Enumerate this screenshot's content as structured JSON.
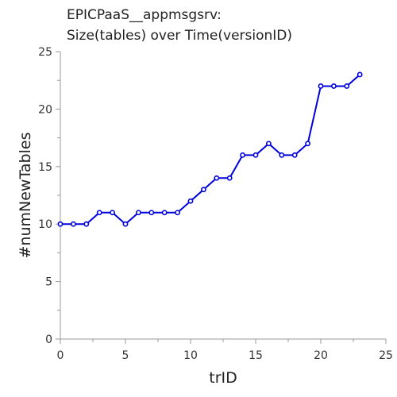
{
  "chart_data": {
    "type": "line",
    "title_lines": [
      "EPICPaaS__appmsgsrv:",
      "Size(tables) over Time(versionID)"
    ],
    "xlabel": "trID",
    "ylabel": "#numNewTables",
    "xlim": [
      0,
      25
    ],
    "ylim": [
      0,
      25
    ],
    "x_ticks": [
      "0",
      "5",
      "10",
      "15",
      "20",
      "25"
    ],
    "y_ticks": [
      "0",
      "5",
      "10",
      "15",
      "20",
      "25"
    ],
    "grid": false,
    "series_color": "#0000dd",
    "x": [
      0,
      1,
      2,
      3,
      4,
      5,
      6,
      7,
      8,
      9,
      10,
      11,
      12,
      13,
      14,
      15,
      16,
      17,
      18,
      19,
      20,
      21,
      22,
      23
    ],
    "y": [
      10,
      10,
      10,
      11,
      11,
      10,
      11,
      11,
      11,
      11,
      12,
      13,
      14,
      14,
      16,
      16,
      17,
      16,
      16,
      17,
      22,
      22,
      22,
      23
    ]
  }
}
